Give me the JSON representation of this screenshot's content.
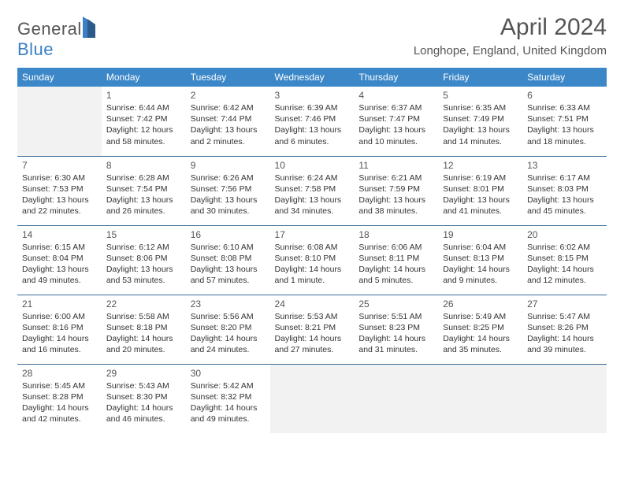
{
  "header": {
    "logo_part1": "General",
    "logo_part2": "Blue",
    "month_title": "April 2024",
    "location": "Longhope, England, United Kingdom"
  },
  "colors": {
    "header_bg": "#3b87c8",
    "header_text": "#ffffff",
    "border": "#3b6b96",
    "empty_bg": "#f2f2f2",
    "logo_blue": "#3b7fc4",
    "logo_gray": "#555555"
  },
  "weekdays": [
    "Sunday",
    "Monday",
    "Tuesday",
    "Wednesday",
    "Thursday",
    "Friday",
    "Saturday"
  ],
  "weeks": [
    [
      {
        "empty": true
      },
      {
        "day": "1",
        "sunrise": "Sunrise: 6:44 AM",
        "sunset": "Sunset: 7:42 PM",
        "daylight": "Daylight: 12 hours and 58 minutes."
      },
      {
        "day": "2",
        "sunrise": "Sunrise: 6:42 AM",
        "sunset": "Sunset: 7:44 PM",
        "daylight": "Daylight: 13 hours and 2 minutes."
      },
      {
        "day": "3",
        "sunrise": "Sunrise: 6:39 AM",
        "sunset": "Sunset: 7:46 PM",
        "daylight": "Daylight: 13 hours and 6 minutes."
      },
      {
        "day": "4",
        "sunrise": "Sunrise: 6:37 AM",
        "sunset": "Sunset: 7:47 PM",
        "daylight": "Daylight: 13 hours and 10 minutes."
      },
      {
        "day": "5",
        "sunrise": "Sunrise: 6:35 AM",
        "sunset": "Sunset: 7:49 PM",
        "daylight": "Daylight: 13 hours and 14 minutes."
      },
      {
        "day": "6",
        "sunrise": "Sunrise: 6:33 AM",
        "sunset": "Sunset: 7:51 PM",
        "daylight": "Daylight: 13 hours and 18 minutes."
      }
    ],
    [
      {
        "day": "7",
        "sunrise": "Sunrise: 6:30 AM",
        "sunset": "Sunset: 7:53 PM",
        "daylight": "Daylight: 13 hours and 22 minutes."
      },
      {
        "day": "8",
        "sunrise": "Sunrise: 6:28 AM",
        "sunset": "Sunset: 7:54 PM",
        "daylight": "Daylight: 13 hours and 26 minutes."
      },
      {
        "day": "9",
        "sunrise": "Sunrise: 6:26 AM",
        "sunset": "Sunset: 7:56 PM",
        "daylight": "Daylight: 13 hours and 30 minutes."
      },
      {
        "day": "10",
        "sunrise": "Sunrise: 6:24 AM",
        "sunset": "Sunset: 7:58 PM",
        "daylight": "Daylight: 13 hours and 34 minutes."
      },
      {
        "day": "11",
        "sunrise": "Sunrise: 6:21 AM",
        "sunset": "Sunset: 7:59 PM",
        "daylight": "Daylight: 13 hours and 38 minutes."
      },
      {
        "day": "12",
        "sunrise": "Sunrise: 6:19 AM",
        "sunset": "Sunset: 8:01 PM",
        "daylight": "Daylight: 13 hours and 41 minutes."
      },
      {
        "day": "13",
        "sunrise": "Sunrise: 6:17 AM",
        "sunset": "Sunset: 8:03 PM",
        "daylight": "Daylight: 13 hours and 45 minutes."
      }
    ],
    [
      {
        "day": "14",
        "sunrise": "Sunrise: 6:15 AM",
        "sunset": "Sunset: 8:04 PM",
        "daylight": "Daylight: 13 hours and 49 minutes."
      },
      {
        "day": "15",
        "sunrise": "Sunrise: 6:12 AM",
        "sunset": "Sunset: 8:06 PM",
        "daylight": "Daylight: 13 hours and 53 minutes."
      },
      {
        "day": "16",
        "sunrise": "Sunrise: 6:10 AM",
        "sunset": "Sunset: 8:08 PM",
        "daylight": "Daylight: 13 hours and 57 minutes."
      },
      {
        "day": "17",
        "sunrise": "Sunrise: 6:08 AM",
        "sunset": "Sunset: 8:10 PM",
        "daylight": "Daylight: 14 hours and 1 minute."
      },
      {
        "day": "18",
        "sunrise": "Sunrise: 6:06 AM",
        "sunset": "Sunset: 8:11 PM",
        "daylight": "Daylight: 14 hours and 5 minutes."
      },
      {
        "day": "19",
        "sunrise": "Sunrise: 6:04 AM",
        "sunset": "Sunset: 8:13 PM",
        "daylight": "Daylight: 14 hours and 9 minutes."
      },
      {
        "day": "20",
        "sunrise": "Sunrise: 6:02 AM",
        "sunset": "Sunset: 8:15 PM",
        "daylight": "Daylight: 14 hours and 12 minutes."
      }
    ],
    [
      {
        "day": "21",
        "sunrise": "Sunrise: 6:00 AM",
        "sunset": "Sunset: 8:16 PM",
        "daylight": "Daylight: 14 hours and 16 minutes."
      },
      {
        "day": "22",
        "sunrise": "Sunrise: 5:58 AM",
        "sunset": "Sunset: 8:18 PM",
        "daylight": "Daylight: 14 hours and 20 minutes."
      },
      {
        "day": "23",
        "sunrise": "Sunrise: 5:56 AM",
        "sunset": "Sunset: 8:20 PM",
        "daylight": "Daylight: 14 hours and 24 minutes."
      },
      {
        "day": "24",
        "sunrise": "Sunrise: 5:53 AM",
        "sunset": "Sunset: 8:21 PM",
        "daylight": "Daylight: 14 hours and 27 minutes."
      },
      {
        "day": "25",
        "sunrise": "Sunrise: 5:51 AM",
        "sunset": "Sunset: 8:23 PM",
        "daylight": "Daylight: 14 hours and 31 minutes."
      },
      {
        "day": "26",
        "sunrise": "Sunrise: 5:49 AM",
        "sunset": "Sunset: 8:25 PM",
        "daylight": "Daylight: 14 hours and 35 minutes."
      },
      {
        "day": "27",
        "sunrise": "Sunrise: 5:47 AM",
        "sunset": "Sunset: 8:26 PM",
        "daylight": "Daylight: 14 hours and 39 minutes."
      }
    ],
    [
      {
        "day": "28",
        "sunrise": "Sunrise: 5:45 AM",
        "sunset": "Sunset: 8:28 PM",
        "daylight": "Daylight: 14 hours and 42 minutes."
      },
      {
        "day": "29",
        "sunrise": "Sunrise: 5:43 AM",
        "sunset": "Sunset: 8:30 PM",
        "daylight": "Daylight: 14 hours and 46 minutes."
      },
      {
        "day": "30",
        "sunrise": "Sunrise: 5:42 AM",
        "sunset": "Sunset: 8:32 PM",
        "daylight": "Daylight: 14 hours and 49 minutes."
      },
      {
        "empty": true
      },
      {
        "empty": true
      },
      {
        "empty": true
      },
      {
        "empty": true
      }
    ]
  ]
}
